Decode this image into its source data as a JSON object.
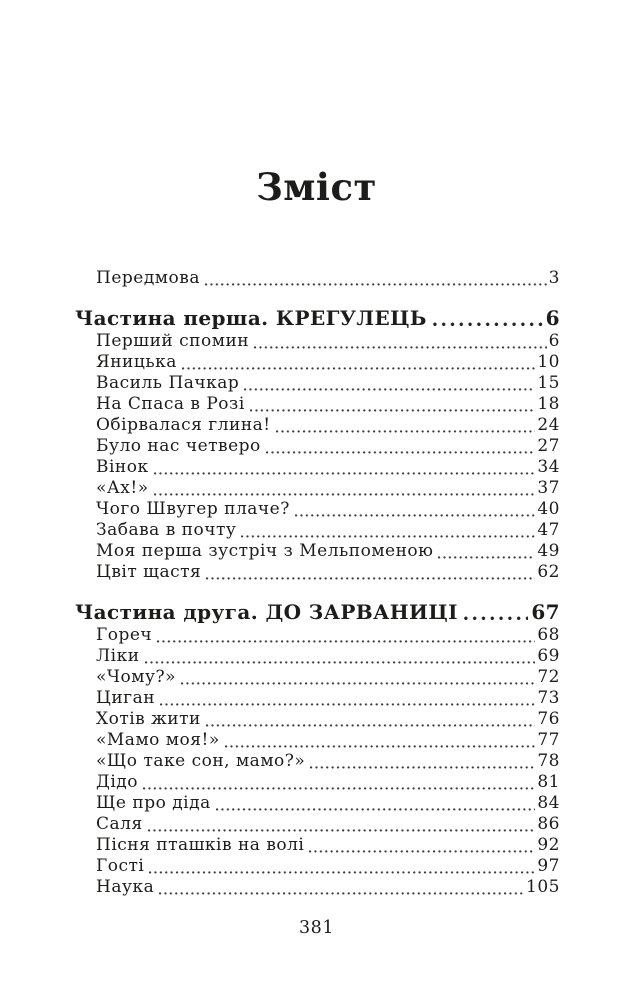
{
  "book_page": {
    "title": "Зміст",
    "folio": "381",
    "preface": {
      "label": "Передмова",
      "page": "3"
    },
    "parts": [
      {
        "heading": "Частина перша. КРЕГУЛЕЦЬ",
        "page": "6",
        "entries": [
          {
            "label": "Перший спомин",
            "page": "6"
          },
          {
            "label": "Яницька",
            "page": "10"
          },
          {
            "label": "Василь Пачкар",
            "page": "15"
          },
          {
            "label": "На Спаса в Розі",
            "page": "18"
          },
          {
            "label": "Обірвалася глина!",
            "page": "24"
          },
          {
            "label": "Було нас четверо",
            "page": "27"
          },
          {
            "label": "Вінок",
            "page": "34"
          },
          {
            "label": "«Ах!»",
            "page": "37"
          },
          {
            "label": "Чого Швугер плаче?",
            "page": "40"
          },
          {
            "label": "Забава в почту",
            "page": "47"
          },
          {
            "label": "Моя перша зустріч з Мельпоменою",
            "page": "49"
          },
          {
            "label": "Цвіт щастя",
            "page": "62"
          }
        ]
      },
      {
        "heading": "Частина друга. ДО ЗАРВАНИЦІ",
        "page": "67",
        "entries": [
          {
            "label": "Гореч",
            "page": "68"
          },
          {
            "label": "Ліки",
            "page": "69"
          },
          {
            "label": "«Чому?»",
            "page": "72"
          },
          {
            "label": "Циган",
            "page": "73"
          },
          {
            "label": "Хотів жити",
            "page": "76"
          },
          {
            "label": "«Мамо моя!»",
            "page": "77"
          },
          {
            "label": "«Що таке сон, мамо?»",
            "page": "78"
          },
          {
            "label": "Дідо",
            "page": "81"
          },
          {
            "label": "Ще про діда",
            "page": "84"
          },
          {
            "label": "Саля",
            "page": "86"
          },
          {
            "label": "Пісня пташків на волі",
            "page": "92"
          },
          {
            "label": "Гості",
            "page": "97"
          },
          {
            "label": "Наука",
            "page": "105"
          }
        ]
      }
    ]
  }
}
